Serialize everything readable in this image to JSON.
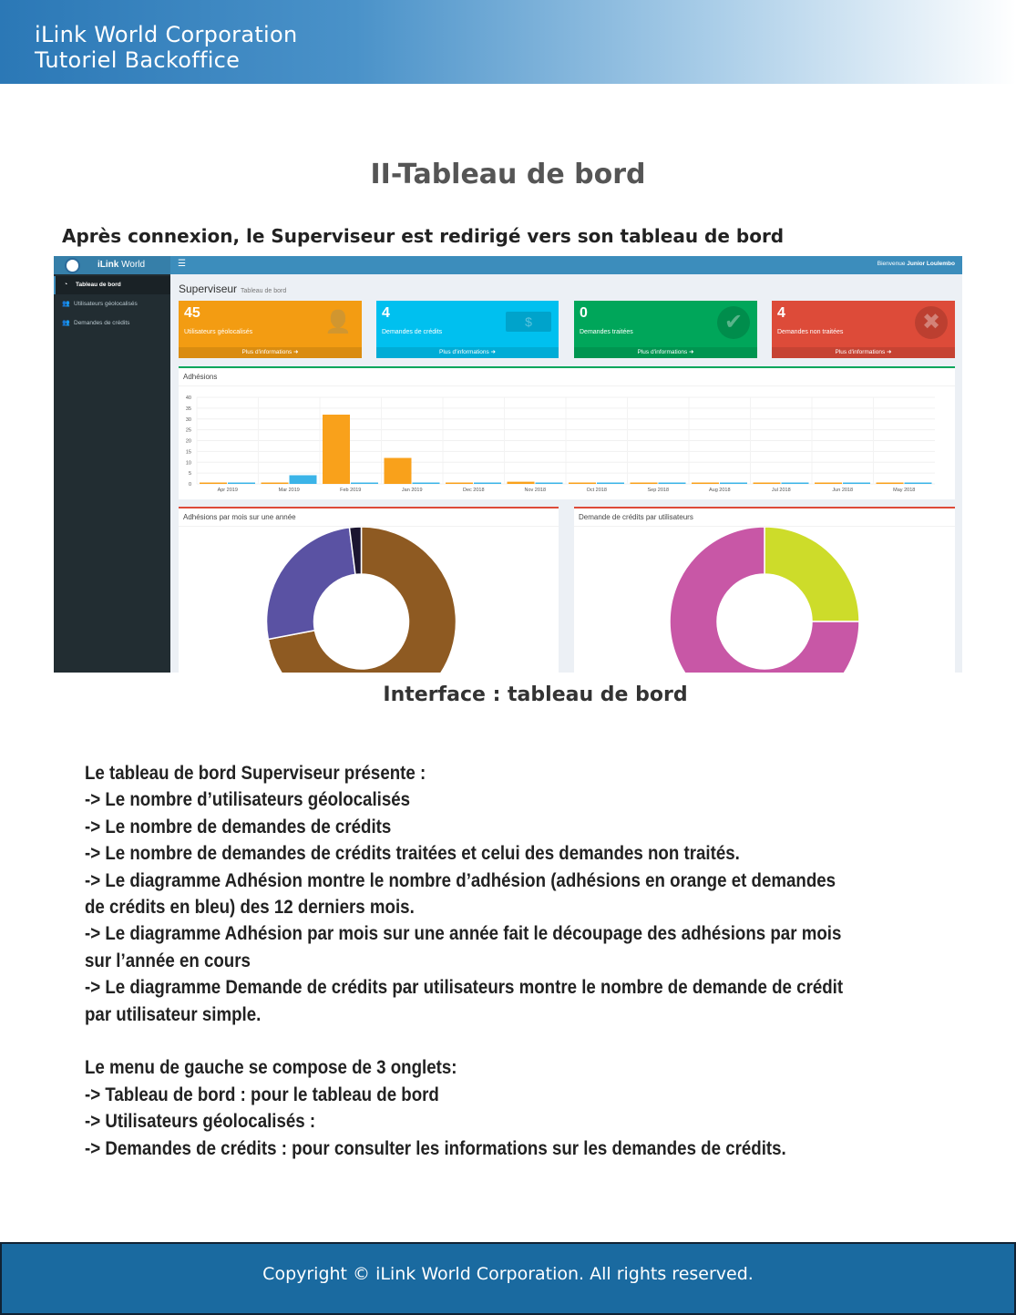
{
  "header": {
    "line1": "iLink World Corporation",
    "line2": "Tutoriel Backoffice"
  },
  "title": "II-Tableau de bord",
  "subtitle": "Après connexion, le Superviseur est redirigé vers son tableau de bord",
  "app": {
    "brand_bold": "iLink",
    "brand": " World",
    "menu_icon": "☰",
    "welcome": "Bienvenue ",
    "user": "Junior Loulembo",
    "sidebar": [
      {
        "label": "Tableau de bord",
        "icon": "dashboard-icon",
        "active": true
      },
      {
        "label": "Utilisateurs géolocalisés",
        "icon": "users-icon"
      },
      {
        "label": "Demandes de crédits",
        "icon": "users-icon"
      }
    ],
    "page_title": "Superviseur",
    "page_sub": "Tableau de bord",
    "boxes": [
      {
        "value": "45",
        "label": "Utilisateurs géolocalisés",
        "more": "Plus d'informations ➜",
        "color": "#f39c12",
        "icon": "user-plus-icon"
      },
      {
        "value": "4",
        "label": "Demandes de crédits",
        "more": "Plus d'informations ➜",
        "color": "#00c0ef",
        "icon": "money-icon"
      },
      {
        "value": "0",
        "label": "Demandes traitées",
        "more": "Plus d'informations ➜",
        "color": "#00a65a",
        "icon": "check-icon"
      },
      {
        "value": "4",
        "label": "Demandes non traitées",
        "more": "Plus d'informations ➜",
        "color": "#dd4b39",
        "icon": "times-icon"
      }
    ],
    "panel_donut1": "Adhésions par mois sur une année",
    "panel_donut2": "Demande de crédits par utilisateurs"
  },
  "chart_data": [
    {
      "type": "bar",
      "title": "Adhésions",
      "categories": [
        "Apr 2019",
        "Mar 2019",
        "Feb 2019",
        "Jan 2019",
        "Dec 2018",
        "Nov 2018",
        "Oct 2018",
        "Sep 2018",
        "Aug 2018",
        "Jul 2018",
        "Jun 2018",
        "May 2018"
      ],
      "series": [
        {
          "values": [
            0,
            0,
            32,
            12,
            0,
            1,
            0,
            0,
            0,
            0,
            0,
            0
          ],
          "color": "#f9a11b"
        },
        {
          "values": [
            0,
            4,
            0,
            0,
            0,
            0,
            0,
            0,
            0,
            0,
            0,
            0
          ],
          "color": "#3bb4e8"
        }
      ],
      "ylim": [
        0,
        40
      ],
      "yticks": [
        0,
        5,
        10,
        15,
        20,
        25,
        30,
        35,
        40
      ],
      "grid": true
    },
    {
      "type": "pie",
      "donut": true,
      "values": [
        72,
        26,
        2
      ],
      "colors": [
        "#8e5a22",
        "#5a52a3",
        "#1b1530"
      ]
    },
    {
      "type": "pie",
      "donut": true,
      "values": [
        25,
        75
      ],
      "colors": [
        "#cddc2a",
        "#c857a6"
      ]
    }
  ],
  "caption": "Interface : tableau de bord",
  "body": [
    "Le tableau de bord Superviseur présente :",
    "-> Le nombre d’utilisateurs géolocalisés",
    "-> Le nombre de demandes de crédits",
    "-> Le nombre de demandes de crédits traitées et celui des demandes non traités.",
    "-> Le diagramme Adhésion montre le nombre d’adhésion (adhésions en orange et demandes",
    "de crédits en bleu) des 12 derniers mois.",
    "-> Le diagramme Adhésion par mois sur une année fait le découpage des adhésions par mois",
    "sur l’année en cours",
    "-> Le diagramme Demande de crédits par utilisateurs montre le nombre de demande de crédit",
    "par utilisateur simple.",
    "",
    "Le menu de gauche se compose de 3 onglets:",
    "-> Tableau de bord : pour le tableau de bord",
    "-> Utilisateurs géolocalisés :",
    "-> Demandes de crédits : pour consulter les informations sur les demandes de crédits."
  ],
  "footer": "Copyright © iLink World Corporation. All rights reserved."
}
